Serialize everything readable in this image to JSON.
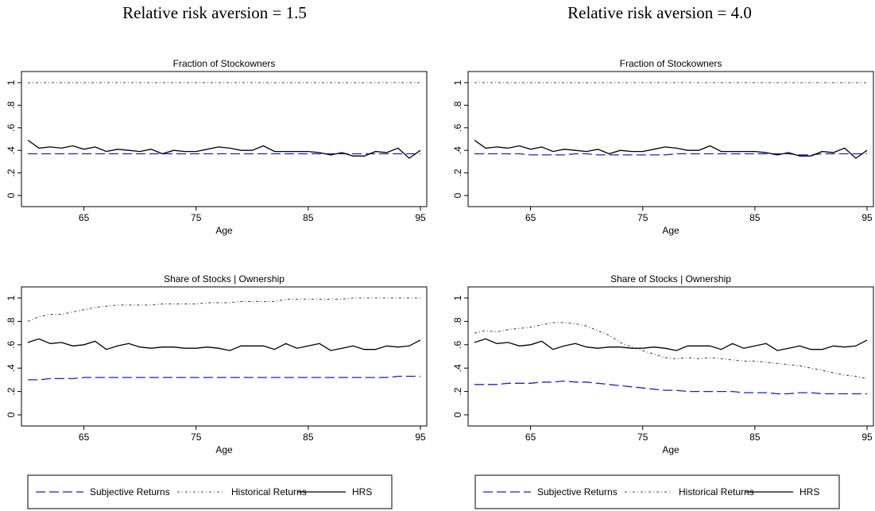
{
  "column_titles": [
    "Relative risk aversion = 1.5",
    "Relative risk aversion = 4.0"
  ],
  "legend": {
    "entries": [
      {
        "label": "Subjective Returns",
        "color": "#1f1fd0",
        "style": "dashed"
      },
      {
        "label": "Historical Returns",
        "color": "#444444",
        "style": "dashdot"
      },
      {
        "label": "HRS",
        "color": "#000000",
        "style": "solid"
      }
    ]
  },
  "colors": {
    "subjective": "#1f1fd0",
    "historical": "#444444",
    "hrs": "#000000"
  },
  "chart_data": [
    {
      "type": "line",
      "title": "Fraction of Stockowners",
      "xlabel": "Age",
      "ylabel": "",
      "xlim": [
        60,
        95
      ],
      "ylim": [
        0,
        1
      ],
      "xticks": [
        65,
        75,
        85,
        95
      ],
      "yticks": [
        0,
        0.2,
        0.4,
        0.6,
        0.8,
        1
      ],
      "ytick_labels": [
        "0",
        ".2",
        ".4",
        ".6",
        ".8",
        "1"
      ],
      "x": [
        60,
        61,
        62,
        63,
        64,
        65,
        66,
        67,
        68,
        69,
        70,
        71,
        72,
        73,
        74,
        75,
        76,
        77,
        78,
        79,
        80,
        81,
        82,
        83,
        84,
        85,
        86,
        87,
        88,
        89,
        90,
        91,
        92,
        93,
        94,
        95
      ],
      "series": [
        {
          "name": "Subjective Returns",
          "values": [
            0.37,
            0.37,
            0.37,
            0.37,
            0.37,
            0.37,
            0.37,
            0.37,
            0.37,
            0.37,
            0.37,
            0.37,
            0.37,
            0.37,
            0.37,
            0.37,
            0.37,
            0.37,
            0.37,
            0.37,
            0.37,
            0.37,
            0.37,
            0.37,
            0.37,
            0.37,
            0.37,
            0.37,
            0.37,
            0.37,
            0.37,
            0.37,
            0.37,
            0.37,
            0.37,
            0.37
          ]
        },
        {
          "name": "Historical Returns",
          "values": [
            1,
            1,
            1,
            1,
            1,
            1,
            1,
            1,
            1,
            1,
            1,
            1,
            1,
            1,
            1,
            1,
            1,
            1,
            1,
            1,
            1,
            1,
            1,
            1,
            1,
            1,
            1,
            1,
            1,
            1,
            1,
            1,
            1,
            1,
            1,
            1
          ]
        },
        {
          "name": "HRS",
          "values": [
            0.49,
            0.42,
            0.43,
            0.42,
            0.44,
            0.41,
            0.43,
            0.39,
            0.41,
            0.4,
            0.39,
            0.41,
            0.37,
            0.4,
            0.39,
            0.39,
            0.41,
            0.43,
            0.42,
            0.4,
            0.4,
            0.44,
            0.39,
            0.39,
            0.39,
            0.39,
            0.38,
            0.36,
            0.38,
            0.35,
            0.35,
            0.39,
            0.38,
            0.42,
            0.33,
            0.4
          ]
        }
      ]
    },
    {
      "type": "line",
      "title": "Fraction of Stockowners",
      "xlabel": "Age",
      "ylabel": "",
      "xlim": [
        60,
        95
      ],
      "ylim": [
        0,
        1
      ],
      "xticks": [
        65,
        75,
        85,
        95
      ],
      "yticks": [
        0,
        0.2,
        0.4,
        0.6,
        0.8,
        1
      ],
      "ytick_labels": [
        "0",
        ".2",
        ".4",
        ".6",
        ".8",
        "1"
      ],
      "x": [
        60,
        61,
        62,
        63,
        64,
        65,
        66,
        67,
        68,
        69,
        70,
        71,
        72,
        73,
        74,
        75,
        76,
        77,
        78,
        79,
        80,
        81,
        82,
        83,
        84,
        85,
        86,
        87,
        88,
        89,
        90,
        91,
        92,
        93,
        94,
        95
      ],
      "series": [
        {
          "name": "Subjective Returns",
          "values": [
            0.37,
            0.37,
            0.37,
            0.37,
            0.37,
            0.36,
            0.36,
            0.36,
            0.36,
            0.37,
            0.37,
            0.36,
            0.36,
            0.36,
            0.36,
            0.36,
            0.36,
            0.36,
            0.37,
            0.37,
            0.37,
            0.37,
            0.37,
            0.37,
            0.37,
            0.37,
            0.37,
            0.37,
            0.37,
            0.36,
            0.36,
            0.37,
            0.37,
            0.37,
            0.37,
            0.37
          ]
        },
        {
          "name": "Historical Returns",
          "values": [
            1,
            1,
            1,
            1,
            1,
            1,
            1,
            1,
            1,
            1,
            1,
            1,
            1,
            1,
            1,
            1,
            1,
            1,
            1,
            1,
            1,
            1,
            1,
            1,
            1,
            1,
            1,
            1,
            1,
            1,
            1,
            1,
            1,
            1,
            1,
            1
          ]
        },
        {
          "name": "HRS",
          "values": [
            0.49,
            0.42,
            0.43,
            0.42,
            0.44,
            0.41,
            0.43,
            0.39,
            0.41,
            0.4,
            0.39,
            0.41,
            0.37,
            0.4,
            0.39,
            0.39,
            0.41,
            0.43,
            0.42,
            0.4,
            0.4,
            0.44,
            0.39,
            0.39,
            0.39,
            0.39,
            0.38,
            0.36,
            0.38,
            0.35,
            0.35,
            0.39,
            0.38,
            0.42,
            0.33,
            0.4
          ]
        }
      ]
    },
    {
      "type": "line",
      "title": "Share of Stocks | Ownership",
      "xlabel": "Age",
      "ylabel": "",
      "xlim": [
        60,
        95
      ],
      "ylim": [
        0,
        1
      ],
      "xticks": [
        65,
        75,
        85,
        95
      ],
      "yticks": [
        0,
        0.2,
        0.4,
        0.6,
        0.8,
        1
      ],
      "ytick_labels": [
        "0",
        ".2",
        ".4",
        ".6",
        ".8",
        "1"
      ],
      "x": [
        60,
        61,
        62,
        63,
        64,
        65,
        66,
        67,
        68,
        69,
        70,
        71,
        72,
        73,
        74,
        75,
        76,
        77,
        78,
        79,
        80,
        81,
        82,
        83,
        84,
        85,
        86,
        87,
        88,
        89,
        90,
        91,
        92,
        93,
        94,
        95
      ],
      "series": [
        {
          "name": "Subjective Returns",
          "values": [
            0.3,
            0.3,
            0.31,
            0.31,
            0.31,
            0.32,
            0.32,
            0.32,
            0.32,
            0.32,
            0.32,
            0.32,
            0.32,
            0.32,
            0.32,
            0.32,
            0.32,
            0.32,
            0.32,
            0.32,
            0.32,
            0.32,
            0.32,
            0.32,
            0.32,
            0.32,
            0.32,
            0.32,
            0.32,
            0.32,
            0.32,
            0.32,
            0.32,
            0.33,
            0.33,
            0.33
          ]
        },
        {
          "name": "Historical Returns",
          "values": [
            0.8,
            0.84,
            0.86,
            0.86,
            0.88,
            0.9,
            0.92,
            0.93,
            0.94,
            0.94,
            0.94,
            0.94,
            0.95,
            0.95,
            0.95,
            0.95,
            0.96,
            0.96,
            0.96,
            0.97,
            0.97,
            0.97,
            0.97,
            0.99,
            0.99,
            0.99,
            0.99,
            0.99,
            0.99,
            1.0,
            1.0,
            1.0,
            1.0,
            1.0,
            1.0,
            1.0
          ]
        },
        {
          "name": "HRS",
          "values": [
            0.62,
            0.65,
            0.61,
            0.62,
            0.59,
            0.6,
            0.63,
            0.56,
            0.59,
            0.61,
            0.58,
            0.57,
            0.58,
            0.58,
            0.57,
            0.57,
            0.58,
            0.57,
            0.55,
            0.59,
            0.59,
            0.59,
            0.56,
            0.61,
            0.57,
            0.59,
            0.61,
            0.55,
            0.57,
            0.59,
            0.56,
            0.56,
            0.59,
            0.58,
            0.59,
            0.64
          ]
        }
      ]
    },
    {
      "type": "line",
      "title": "Share of Stocks | Ownership",
      "xlabel": "Age",
      "ylabel": "",
      "xlim": [
        60,
        95
      ],
      "ylim": [
        0,
        1
      ],
      "xticks": [
        65,
        75,
        85,
        95
      ],
      "yticks": [
        0,
        0.2,
        0.4,
        0.6,
        0.8,
        1
      ],
      "ytick_labels": [
        "0",
        ".2",
        ".4",
        ".6",
        ".8",
        "1"
      ],
      "x": [
        60,
        61,
        62,
        63,
        64,
        65,
        66,
        67,
        68,
        69,
        70,
        71,
        72,
        73,
        74,
        75,
        76,
        77,
        78,
        79,
        80,
        81,
        82,
        83,
        84,
        85,
        86,
        87,
        88,
        89,
        90,
        91,
        92,
        93,
        94,
        95
      ],
      "series": [
        {
          "name": "Subjective Returns",
          "values": [
            0.26,
            0.26,
            0.26,
            0.27,
            0.27,
            0.27,
            0.28,
            0.28,
            0.29,
            0.28,
            0.28,
            0.27,
            0.26,
            0.25,
            0.24,
            0.23,
            0.22,
            0.21,
            0.21,
            0.2,
            0.2,
            0.2,
            0.2,
            0.2,
            0.19,
            0.19,
            0.19,
            0.18,
            0.18,
            0.19,
            0.19,
            0.18,
            0.18,
            0.18,
            0.18,
            0.18
          ]
        },
        {
          "name": "Historical Returns",
          "values": [
            0.7,
            0.72,
            0.71,
            0.73,
            0.74,
            0.75,
            0.77,
            0.79,
            0.79,
            0.78,
            0.76,
            0.72,
            0.68,
            0.62,
            0.58,
            0.55,
            0.52,
            0.49,
            0.48,
            0.49,
            0.48,
            0.49,
            0.48,
            0.47,
            0.46,
            0.46,
            0.45,
            0.44,
            0.43,
            0.42,
            0.4,
            0.38,
            0.36,
            0.34,
            0.33,
            0.31
          ]
        },
        {
          "name": "HRS",
          "values": [
            0.62,
            0.65,
            0.61,
            0.62,
            0.59,
            0.6,
            0.63,
            0.56,
            0.59,
            0.61,
            0.58,
            0.57,
            0.58,
            0.58,
            0.57,
            0.57,
            0.58,
            0.57,
            0.55,
            0.59,
            0.59,
            0.59,
            0.56,
            0.61,
            0.57,
            0.59,
            0.61,
            0.55,
            0.57,
            0.59,
            0.56,
            0.56,
            0.59,
            0.58,
            0.59,
            0.64
          ]
        }
      ]
    }
  ]
}
